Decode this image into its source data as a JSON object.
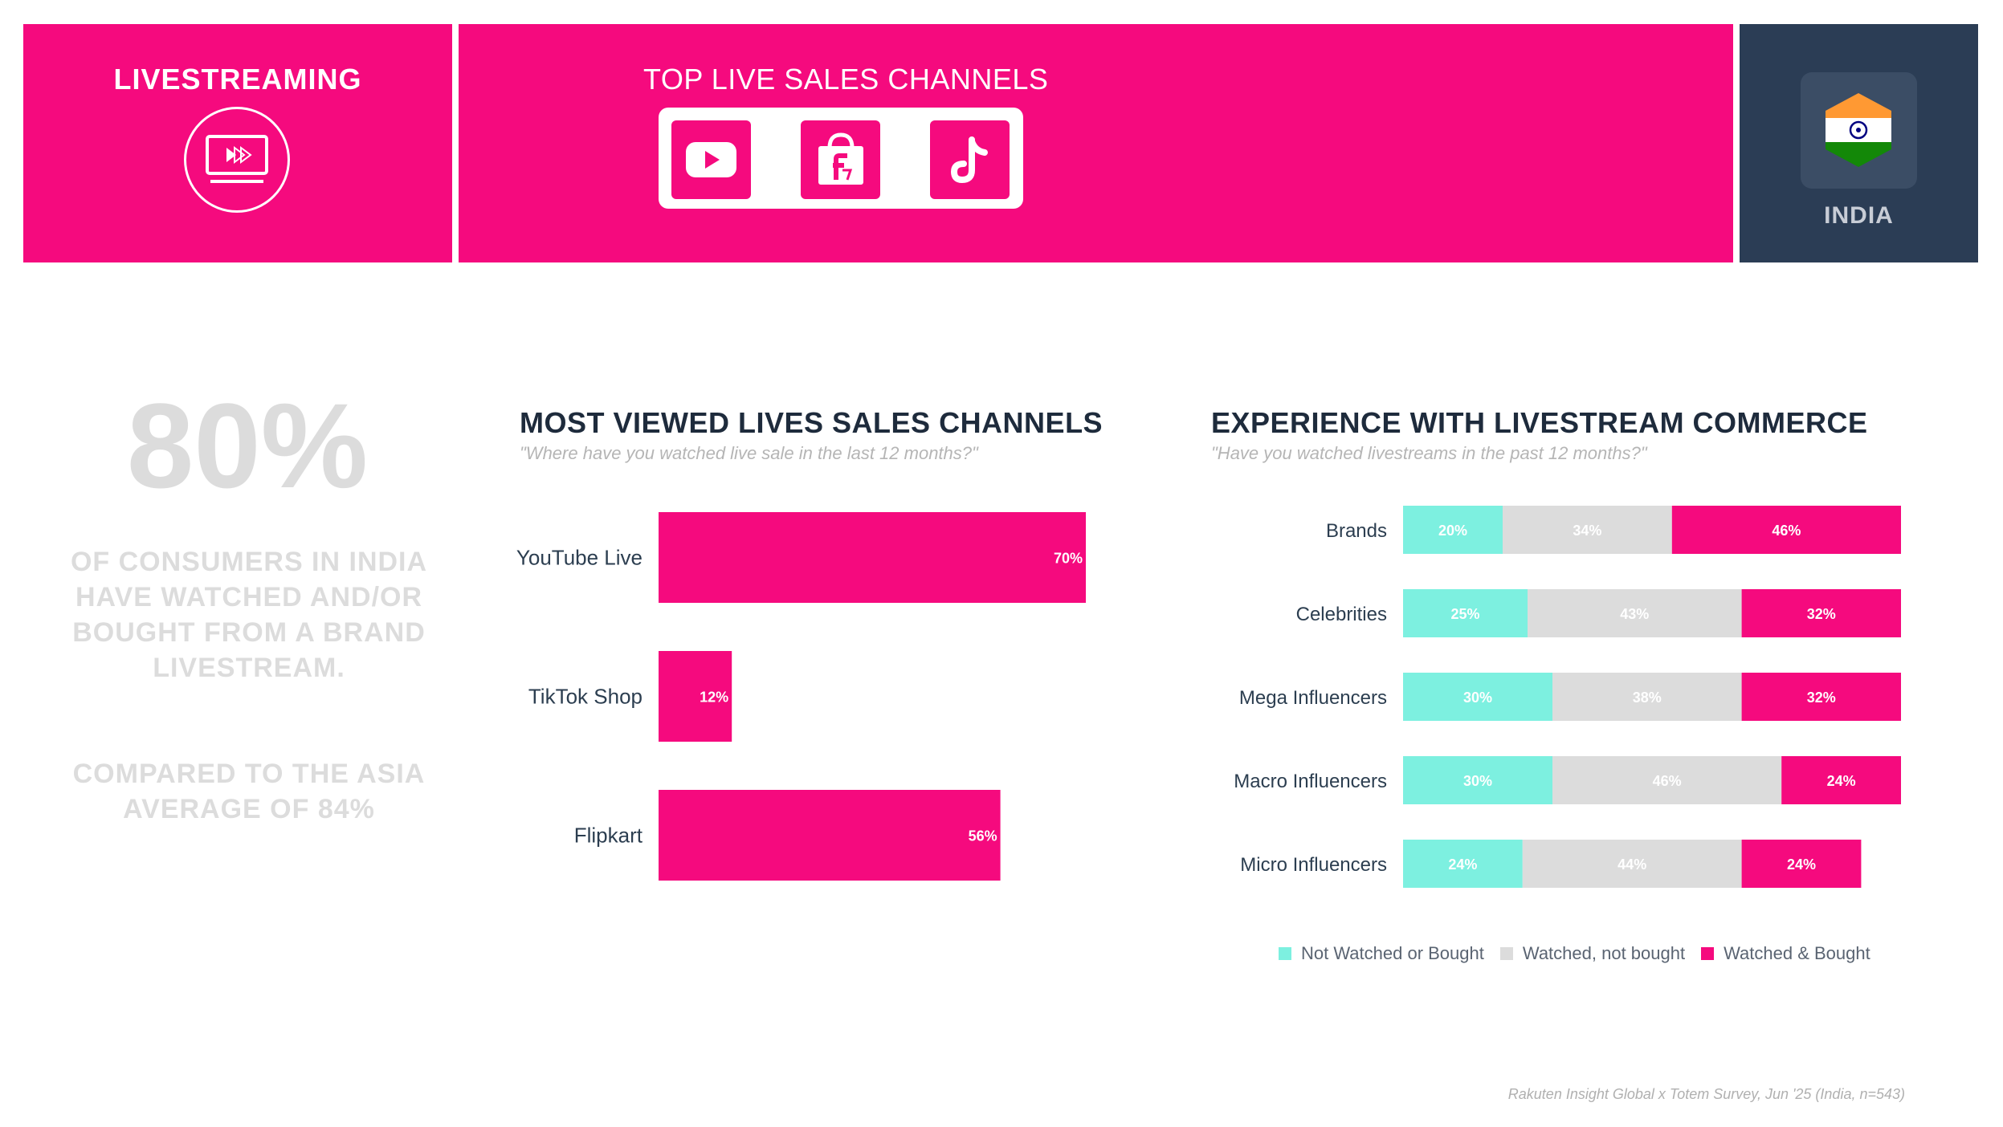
{
  "header": {
    "left_title": "LIVESTREAMING",
    "mid_title": "TOP LIVE SALES CHANNELS",
    "country": "INDIA",
    "apps": [
      {
        "icon": "youtube-icon"
      },
      {
        "icon": "flipkart-icon"
      },
      {
        "icon": "tiktok-icon"
      }
    ]
  },
  "stat": {
    "big": "80%",
    "line1": "OF CONSUMERS IN INDIA HAVE WATCHED AND/OR BOUGHT FROM A BRAND LIVESTREAM.",
    "line2": "COMPARED TO THE ASIA AVERAGE OF 84%"
  },
  "colors": {
    "pink": "#f50a7e",
    "teal": "#7df0e0",
    "grey": "#dcdcdc",
    "navy": "#2b3d55"
  },
  "chart_data": [
    {
      "type": "bar",
      "orientation": "horizontal",
      "title": "MOST VIEWED LIVES SALES CHANNELS",
      "subtitle": "\"Where have you watched live sale in the last 12 months?\"",
      "categories": [
        "YouTube Live",
        "TikTok Shop",
        "Flipkart"
      ],
      "values": [
        70,
        12,
        56
      ],
      "labels": [
        "70%",
        "12%",
        "56%"
      ],
      "xlim": [
        0,
        100
      ],
      "grid": false
    },
    {
      "type": "bar",
      "orientation": "horizontal",
      "stacked": true,
      "title": "EXPERIENCE WITH LIVESTREAM COMMERCE",
      "subtitle": "\"Have you watched livestreams in the past 12 months?\"",
      "categories": [
        "Brands",
        "Celebrities",
        "Mega Influencers",
        "Macro Influencers",
        "Micro Influencers"
      ],
      "series": [
        {
          "name": "Not Watched or Bought",
          "values": [
            20,
            25,
            30,
            30,
            24
          ]
        },
        {
          "name": "Watched, not bought",
          "values": [
            34,
            43,
            38,
            46,
            44
          ]
        },
        {
          "name": "Watched & Bought",
          "values": [
            46,
            32,
            32,
            24,
            24
          ]
        }
      ],
      "legend": "bottom-right",
      "grid": false
    }
  ],
  "source": "Rakuten Insight Global x Totem Survey, Jun '25 (India, n=543)"
}
